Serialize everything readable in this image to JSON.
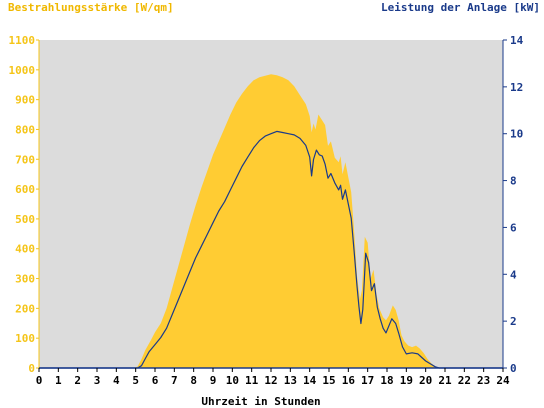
{
  "colors": {
    "irradiance": "#ffcc33",
    "power": "#1a3a8a",
    "plot_background": "#dcdcdc",
    "left_axis": "#f5c518",
    "right_axis": "#1a3a8a"
  },
  "chart_data": {
    "type": "area",
    "title": "",
    "left_axis_label": "Bestrahlungsstärke [W/qm]",
    "right_axis_label": "Leistung der Anlage [kW]",
    "xlabel": "Uhrzeit in Stunden",
    "xlim": [
      0,
      24
    ],
    "x_ticks": [
      0,
      1,
      2,
      3,
      4,
      5,
      6,
      7,
      8,
      9,
      10,
      11,
      12,
      13,
      14,
      15,
      16,
      17,
      18,
      19,
      20,
      21,
      22,
      23,
      24
    ],
    "left_ylim": [
      0,
      1100
    ],
    "left_ticks": [
      0,
      100,
      200,
      300,
      400,
      500,
      600,
      700,
      800,
      900,
      1000,
      1100
    ],
    "right_ylim": [
      0,
      14
    ],
    "right_ticks": [
      0,
      2,
      4,
      6,
      8,
      10,
      12,
      14
    ],
    "grid": false,
    "series": [
      {
        "name": "Bestrahlungsstärke [W/qm]",
        "axis": "left",
        "style": "filled-area",
        "color": "#ffcc33",
        "points": [
          [
            0,
            0
          ],
          [
            4.9,
            0
          ],
          [
            5.1,
            5
          ],
          [
            5.3,
            30
          ],
          [
            5.5,
            60
          ],
          [
            5.8,
            95
          ],
          [
            6.0,
            120
          ],
          [
            6.3,
            150
          ],
          [
            6.6,
            200
          ],
          [
            6.9,
            270
          ],
          [
            7.2,
            340
          ],
          [
            7.5,
            410
          ],
          [
            7.8,
            480
          ],
          [
            8.1,
            545
          ],
          [
            8.4,
            605
          ],
          [
            8.7,
            660
          ],
          [
            9.0,
            715
          ],
          [
            9.3,
            760
          ],
          [
            9.6,
            805
          ],
          [
            9.9,
            850
          ],
          [
            10.2,
            890
          ],
          [
            10.5,
            920
          ],
          [
            10.8,
            945
          ],
          [
            11.1,
            965
          ],
          [
            11.4,
            975
          ],
          [
            11.7,
            980
          ],
          [
            12.0,
            985
          ],
          [
            12.3,
            982
          ],
          [
            12.6,
            975
          ],
          [
            12.9,
            965
          ],
          [
            13.2,
            945
          ],
          [
            13.5,
            915
          ],
          [
            13.8,
            885
          ],
          [
            14.0,
            845
          ],
          [
            14.1,
            790
          ],
          [
            14.2,
            820
          ],
          [
            14.3,
            800
          ],
          [
            14.45,
            850
          ],
          [
            14.6,
            835
          ],
          [
            14.8,
            815
          ],
          [
            14.95,
            745
          ],
          [
            15.1,
            760
          ],
          [
            15.3,
            705
          ],
          [
            15.5,
            690
          ],
          [
            15.6,
            710
          ],
          [
            15.7,
            650
          ],
          [
            15.85,
            690
          ],
          [
            16.0,
            640
          ],
          [
            16.15,
            590
          ],
          [
            16.3,
            460
          ],
          [
            16.45,
            310
          ],
          [
            16.6,
            230
          ],
          [
            16.7,
            260
          ],
          [
            16.85,
            440
          ],
          [
            17.0,
            420
          ],
          [
            17.15,
            300
          ],
          [
            17.3,
            330
          ],
          [
            17.45,
            250
          ],
          [
            17.6,
            200
          ],
          [
            17.8,
            170
          ],
          [
            17.95,
            160
          ],
          [
            18.1,
            175
          ],
          [
            18.3,
            210
          ],
          [
            18.45,
            195
          ],
          [
            18.6,
            160
          ],
          [
            18.75,
            110
          ],
          [
            18.9,
            90
          ],
          [
            19.1,
            75
          ],
          [
            19.3,
            70
          ],
          [
            19.5,
            75
          ],
          [
            19.7,
            65
          ],
          [
            19.9,
            50
          ],
          [
            20.1,
            30
          ],
          [
            20.3,
            15
          ],
          [
            20.5,
            5
          ],
          [
            20.7,
            0
          ],
          [
            24,
            0
          ]
        ]
      },
      {
        "name": "Leistung der Anlage [kW]",
        "axis": "right",
        "style": "line",
        "color": "#1a3a8a",
        "points": [
          [
            0,
            0
          ],
          [
            5.1,
            0
          ],
          [
            5.3,
            0.1
          ],
          [
            5.5,
            0.4
          ],
          [
            5.7,
            0.7
          ],
          [
            6.0,
            1.0
          ],
          [
            6.3,
            1.3
          ],
          [
            6.6,
            1.7
          ],
          [
            6.9,
            2.3
          ],
          [
            7.2,
            2.9
          ],
          [
            7.5,
            3.5
          ],
          [
            7.8,
            4.1
          ],
          [
            8.1,
            4.7
          ],
          [
            8.4,
            5.2
          ],
          [
            8.7,
            5.7
          ],
          [
            9.0,
            6.2
          ],
          [
            9.3,
            6.7
          ],
          [
            9.6,
            7.1
          ],
          [
            9.9,
            7.6
          ],
          [
            10.2,
            8.1
          ],
          [
            10.5,
            8.6
          ],
          [
            10.8,
            9.0
          ],
          [
            11.1,
            9.4
          ],
          [
            11.4,
            9.7
          ],
          [
            11.7,
            9.9
          ],
          [
            12.0,
            10.0
          ],
          [
            12.3,
            10.1
          ],
          [
            12.6,
            10.05
          ],
          [
            12.9,
            10.0
          ],
          [
            13.2,
            9.95
          ],
          [
            13.5,
            9.8
          ],
          [
            13.8,
            9.5
          ],
          [
            14.0,
            9.0
          ],
          [
            14.1,
            8.2
          ],
          [
            14.2,
            8.9
          ],
          [
            14.35,
            9.3
          ],
          [
            14.5,
            9.1
          ],
          [
            14.65,
            9.05
          ],
          [
            14.8,
            8.7
          ],
          [
            14.95,
            8.1
          ],
          [
            15.1,
            8.3
          ],
          [
            15.3,
            7.9
          ],
          [
            15.5,
            7.6
          ],
          [
            15.6,
            7.8
          ],
          [
            15.7,
            7.2
          ],
          [
            15.85,
            7.6
          ],
          [
            16.0,
            7.0
          ],
          [
            16.15,
            6.4
          ],
          [
            16.3,
            5.0
          ],
          [
            16.45,
            3.5
          ],
          [
            16.55,
            2.6
          ],
          [
            16.65,
            1.9
          ],
          [
            16.75,
            2.5
          ],
          [
            16.9,
            4.9
          ],
          [
            17.05,
            4.5
          ],
          [
            17.2,
            3.3
          ],
          [
            17.35,
            3.6
          ],
          [
            17.5,
            2.6
          ],
          [
            17.65,
            2.1
          ],
          [
            17.8,
            1.7
          ],
          [
            17.95,
            1.5
          ],
          [
            18.1,
            1.8
          ],
          [
            18.25,
            2.1
          ],
          [
            18.45,
            1.9
          ],
          [
            18.6,
            1.5
          ],
          [
            18.8,
            0.9
          ],
          [
            19.0,
            0.6
          ],
          [
            19.3,
            0.65
          ],
          [
            19.6,
            0.6
          ],
          [
            19.8,
            0.45
          ],
          [
            20.0,
            0.3
          ],
          [
            20.3,
            0.15
          ],
          [
            20.5,
            0.05
          ],
          [
            20.7,
            0
          ],
          [
            24,
            0
          ]
        ]
      }
    ]
  }
}
